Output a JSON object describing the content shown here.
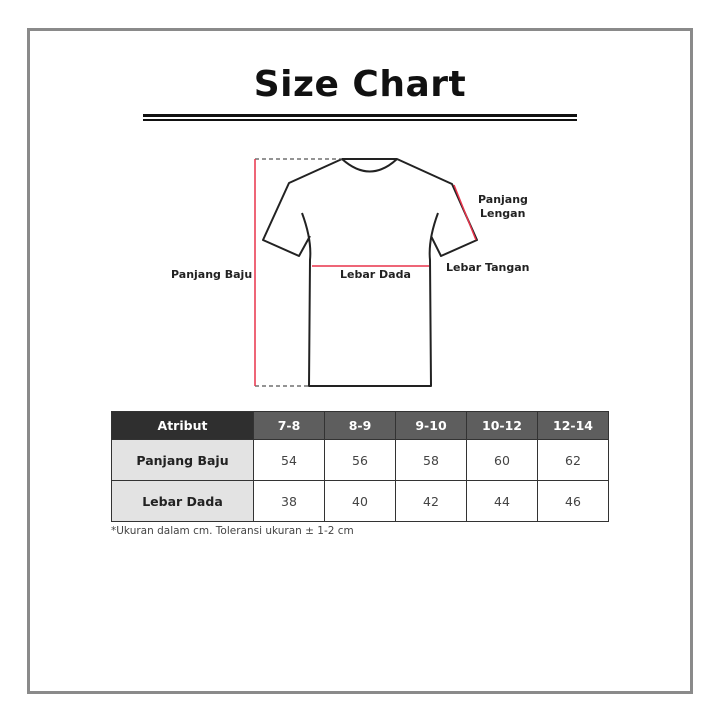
{
  "title": "Size Chart",
  "diagram": {
    "labels": {
      "panjang_baju": "Panjang Baju",
      "lebar_dada": "Lebar Dada",
      "panjang_lengan_1": "Panjang",
      "panjang_lengan_2": "Lengan",
      "lebar_tangan": "Lebar Tangan"
    },
    "measure_color": "#e8324a"
  },
  "table": {
    "headers": [
      "Atribut",
      "7-8",
      "8-9",
      "9-10",
      "10-12",
      "12-14"
    ],
    "rows": [
      {
        "label": "Panjang Baju",
        "values": [
          "54",
          "56",
          "58",
          "60",
          "62"
        ]
      },
      {
        "label": "Lebar Dada",
        "values": [
          "38",
          "40",
          "42",
          "44",
          "46"
        ]
      }
    ]
  },
  "note": "*Ukuran dalam cm. Toleransi ukuran ± 1-2 cm"
}
